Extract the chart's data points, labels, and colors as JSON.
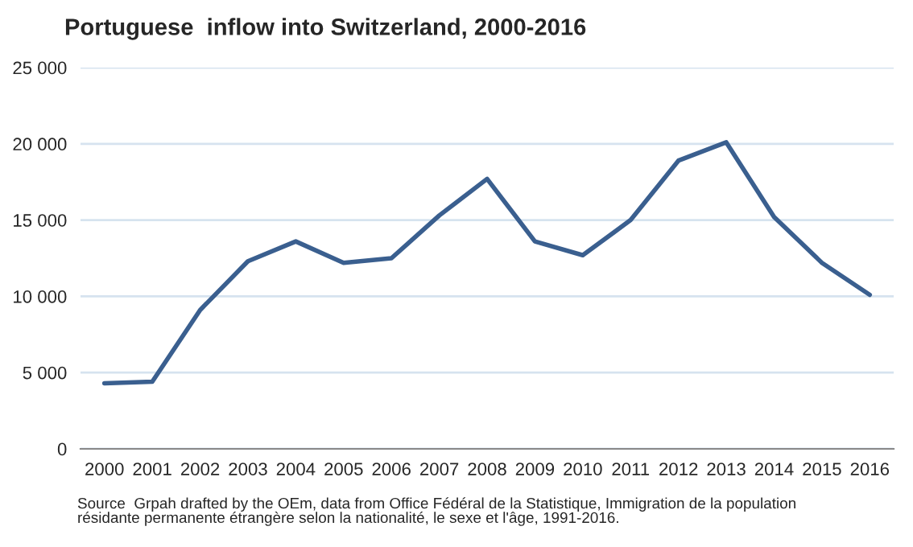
{
  "chart_data": {
    "type": "line",
    "title": "Portuguese  inflow into Switzerland, 2000-2016",
    "categories": [
      "2000",
      "2001",
      "2002",
      "2003",
      "2004",
      "2005",
      "2006",
      "2007",
      "2008",
      "2009",
      "2010",
      "2011",
      "2012",
      "2013",
      "2014",
      "2015",
      "2016"
    ],
    "series": [
      {
        "color": "#3a5f8f",
        "values": [
          4300,
          4400,
          9100,
          12300,
          13600,
          12200,
          12500,
          15300,
          17700,
          13600,
          12700,
          15000,
          18900,
          20100,
          15200,
          12200,
          10100
        ]
      }
    ],
    "ylim": [
      0,
      25000
    ],
    "yticks": [
      0,
      {
        "value": 5000,
        "label": "5 000"
      },
      {
        "value": 10000,
        "label": "10 000"
      },
      {
        "value": 15000,
        "label": "15 000"
      },
      {
        "value": 20000,
        "label": "20 000"
      },
      {
        "value": 25000,
        "label": "25 000"
      }
    ],
    "grid": "y",
    "marker": "none",
    "line_style": "solid",
    "annotations": [
      "Source  Grpah drafted by the OEm, data from Office Fédéral de la Statistique, Immigration de la population\nrésidante permanente étrangère selon la nationalité, le sexe et l'âge, 1991-2016."
    ]
  }
}
